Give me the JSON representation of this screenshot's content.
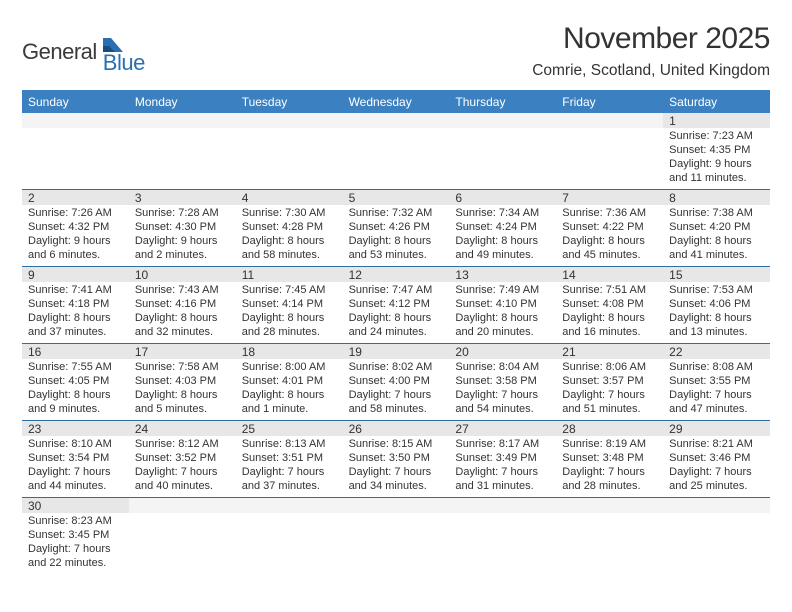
{
  "brand": {
    "word1": "General",
    "word2": "Blue",
    "color1": "#3a3a3a",
    "color2": "#2c6fb0"
  },
  "title": "November 2025",
  "location": "Comrie, Scotland, United Kingdom",
  "header_bg": "#3b81c2",
  "row_divider": "#2f6da8",
  "daynum_bg": "#e7e7e7",
  "weekdays": [
    "Sunday",
    "Monday",
    "Tuesday",
    "Wednesday",
    "Thursday",
    "Friday",
    "Saturday"
  ],
  "weeks": [
    [
      {
        "blank": true
      },
      {
        "blank": true
      },
      {
        "blank": true
      },
      {
        "blank": true
      },
      {
        "blank": true
      },
      {
        "blank": true
      },
      {
        "day": "1",
        "sunrise": "Sunrise: 7:23 AM",
        "sunset": "Sunset: 4:35 PM",
        "daylight1": "Daylight: 9 hours",
        "daylight2": "and 11 minutes."
      }
    ],
    [
      {
        "day": "2",
        "sunrise": "Sunrise: 7:26 AM",
        "sunset": "Sunset: 4:32 PM",
        "daylight1": "Daylight: 9 hours",
        "daylight2": "and 6 minutes."
      },
      {
        "day": "3",
        "sunrise": "Sunrise: 7:28 AM",
        "sunset": "Sunset: 4:30 PM",
        "daylight1": "Daylight: 9 hours",
        "daylight2": "and 2 minutes."
      },
      {
        "day": "4",
        "sunrise": "Sunrise: 7:30 AM",
        "sunset": "Sunset: 4:28 PM",
        "daylight1": "Daylight: 8 hours",
        "daylight2": "and 58 minutes."
      },
      {
        "day": "5",
        "sunrise": "Sunrise: 7:32 AM",
        "sunset": "Sunset: 4:26 PM",
        "daylight1": "Daylight: 8 hours",
        "daylight2": "and 53 minutes."
      },
      {
        "day": "6",
        "sunrise": "Sunrise: 7:34 AM",
        "sunset": "Sunset: 4:24 PM",
        "daylight1": "Daylight: 8 hours",
        "daylight2": "and 49 minutes."
      },
      {
        "day": "7",
        "sunrise": "Sunrise: 7:36 AM",
        "sunset": "Sunset: 4:22 PM",
        "daylight1": "Daylight: 8 hours",
        "daylight2": "and 45 minutes."
      },
      {
        "day": "8",
        "sunrise": "Sunrise: 7:38 AM",
        "sunset": "Sunset: 4:20 PM",
        "daylight1": "Daylight: 8 hours",
        "daylight2": "and 41 minutes."
      }
    ],
    [
      {
        "day": "9",
        "sunrise": "Sunrise: 7:41 AM",
        "sunset": "Sunset: 4:18 PM",
        "daylight1": "Daylight: 8 hours",
        "daylight2": "and 37 minutes."
      },
      {
        "day": "10",
        "sunrise": "Sunrise: 7:43 AM",
        "sunset": "Sunset: 4:16 PM",
        "daylight1": "Daylight: 8 hours",
        "daylight2": "and 32 minutes."
      },
      {
        "day": "11",
        "sunrise": "Sunrise: 7:45 AM",
        "sunset": "Sunset: 4:14 PM",
        "daylight1": "Daylight: 8 hours",
        "daylight2": "and 28 minutes."
      },
      {
        "day": "12",
        "sunrise": "Sunrise: 7:47 AM",
        "sunset": "Sunset: 4:12 PM",
        "daylight1": "Daylight: 8 hours",
        "daylight2": "and 24 minutes."
      },
      {
        "day": "13",
        "sunrise": "Sunrise: 7:49 AM",
        "sunset": "Sunset: 4:10 PM",
        "daylight1": "Daylight: 8 hours",
        "daylight2": "and 20 minutes."
      },
      {
        "day": "14",
        "sunrise": "Sunrise: 7:51 AM",
        "sunset": "Sunset: 4:08 PM",
        "daylight1": "Daylight: 8 hours",
        "daylight2": "and 16 minutes."
      },
      {
        "day": "15",
        "sunrise": "Sunrise: 7:53 AM",
        "sunset": "Sunset: 4:06 PM",
        "daylight1": "Daylight: 8 hours",
        "daylight2": "and 13 minutes."
      }
    ],
    [
      {
        "day": "16",
        "sunrise": "Sunrise: 7:55 AM",
        "sunset": "Sunset: 4:05 PM",
        "daylight1": "Daylight: 8 hours",
        "daylight2": "and 9 minutes."
      },
      {
        "day": "17",
        "sunrise": "Sunrise: 7:58 AM",
        "sunset": "Sunset: 4:03 PM",
        "daylight1": "Daylight: 8 hours",
        "daylight2": "and 5 minutes."
      },
      {
        "day": "18",
        "sunrise": "Sunrise: 8:00 AM",
        "sunset": "Sunset: 4:01 PM",
        "daylight1": "Daylight: 8 hours",
        "daylight2": "and 1 minute."
      },
      {
        "day": "19",
        "sunrise": "Sunrise: 8:02 AM",
        "sunset": "Sunset: 4:00 PM",
        "daylight1": "Daylight: 7 hours",
        "daylight2": "and 58 minutes."
      },
      {
        "day": "20",
        "sunrise": "Sunrise: 8:04 AM",
        "sunset": "Sunset: 3:58 PM",
        "daylight1": "Daylight: 7 hours",
        "daylight2": "and 54 minutes."
      },
      {
        "day": "21",
        "sunrise": "Sunrise: 8:06 AM",
        "sunset": "Sunset: 3:57 PM",
        "daylight1": "Daylight: 7 hours",
        "daylight2": "and 51 minutes."
      },
      {
        "day": "22",
        "sunrise": "Sunrise: 8:08 AM",
        "sunset": "Sunset: 3:55 PM",
        "daylight1": "Daylight: 7 hours",
        "daylight2": "and 47 minutes."
      }
    ],
    [
      {
        "day": "23",
        "sunrise": "Sunrise: 8:10 AM",
        "sunset": "Sunset: 3:54 PM",
        "daylight1": "Daylight: 7 hours",
        "daylight2": "and 44 minutes."
      },
      {
        "day": "24",
        "sunrise": "Sunrise: 8:12 AM",
        "sunset": "Sunset: 3:52 PM",
        "daylight1": "Daylight: 7 hours",
        "daylight2": "and 40 minutes."
      },
      {
        "day": "25",
        "sunrise": "Sunrise: 8:13 AM",
        "sunset": "Sunset: 3:51 PM",
        "daylight1": "Daylight: 7 hours",
        "daylight2": "and 37 minutes."
      },
      {
        "day": "26",
        "sunrise": "Sunrise: 8:15 AM",
        "sunset": "Sunset: 3:50 PM",
        "daylight1": "Daylight: 7 hours",
        "daylight2": "and 34 minutes."
      },
      {
        "day": "27",
        "sunrise": "Sunrise: 8:17 AM",
        "sunset": "Sunset: 3:49 PM",
        "daylight1": "Daylight: 7 hours",
        "daylight2": "and 31 minutes."
      },
      {
        "day": "28",
        "sunrise": "Sunrise: 8:19 AM",
        "sunset": "Sunset: 3:48 PM",
        "daylight1": "Daylight: 7 hours",
        "daylight2": "and 28 minutes."
      },
      {
        "day": "29",
        "sunrise": "Sunrise: 8:21 AM",
        "sunset": "Sunset: 3:46 PM",
        "daylight1": "Daylight: 7 hours",
        "daylight2": "and 25 minutes."
      }
    ],
    [
      {
        "day": "30",
        "sunrise": "Sunrise: 8:23 AM",
        "sunset": "Sunset: 3:45 PM",
        "daylight1": "Daylight: 7 hours",
        "daylight2": "and 22 minutes."
      },
      {
        "blank": true
      },
      {
        "blank": true
      },
      {
        "blank": true
      },
      {
        "blank": true
      },
      {
        "blank": true
      },
      {
        "blank": true
      }
    ]
  ]
}
